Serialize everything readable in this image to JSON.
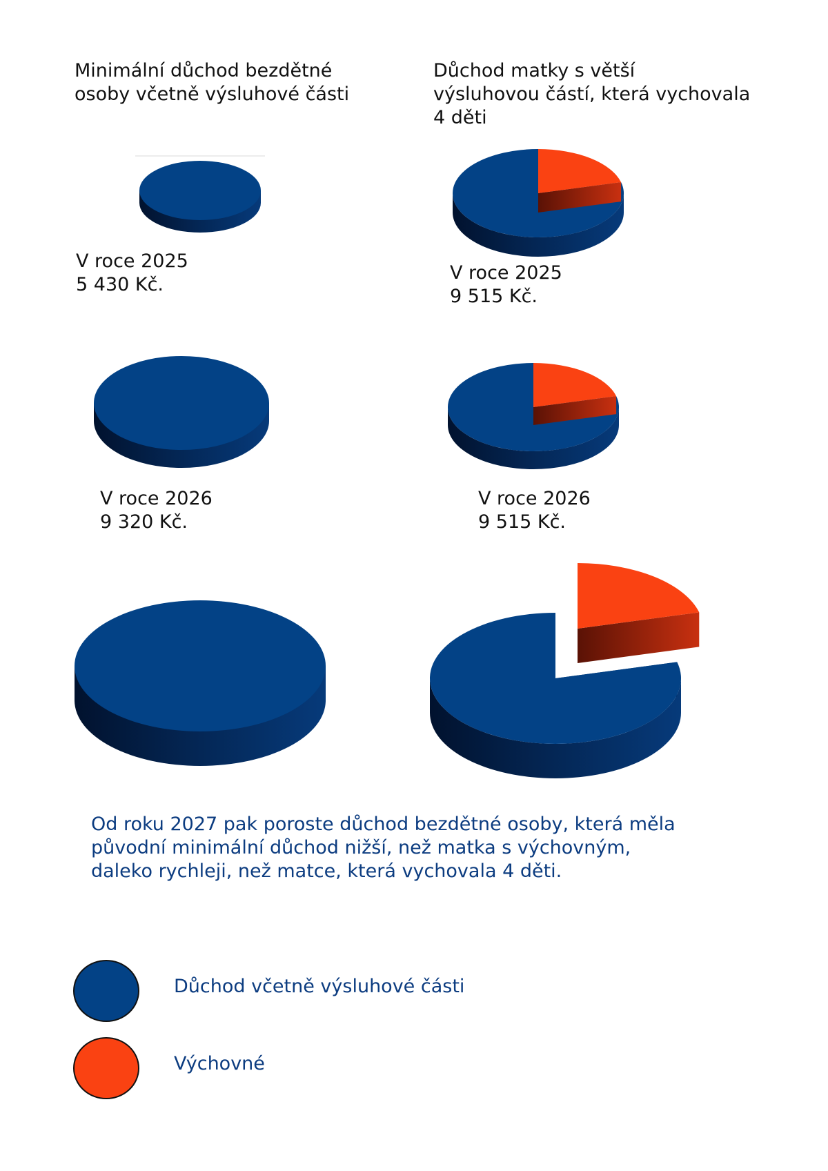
{
  "titles": {
    "left": "Minimální důchod bezdětné\nosoby včetně výsluhové části",
    "right": "Důchod matky s větší\nvýsluhovou částí, která vychovala\n4 děti"
  },
  "captions": {
    "left_2025": {
      "year": "V roce 2025",
      "amount": "5 430 Kč."
    },
    "right_2025": {
      "year": "V roce 2025",
      "amount": "9 515 Kč."
    },
    "left_2026": {
      "year": "V roce 2026",
      "amount": "9 320 Kč."
    },
    "right_2026": {
      "year": "V roce 2026",
      "amount": "9 515 Kč."
    }
  },
  "note": "Od roku 2027 pak poroste důchod bezdětné osoby, která měla\npůvodní minimální důchod nižší, než matka s výchovným,\ndaleko rychleji, než matce, která vychovala 4 děti.",
  "legend": [
    {
      "label": "Důchod včetně výsluhové části",
      "color": "#034286"
    },
    {
      "label": "Výchovné",
      "color": "#fa4212"
    }
  ],
  "chart_data": [
    {
      "type": "pie",
      "title": "",
      "labels": [
        "Důchod včetně výsluhové části"
      ],
      "values": [
        5430
      ]
    },
    {
      "type": "pie",
      "title": "",
      "labels": [
        "Důchod včetně výsluhové části",
        "Výchovné"
      ],
      "values": [
        0.79,
        0.21
      ]
    },
    {
      "type": "pie",
      "title": "",
      "labels": [
        "Důchod včetně výsluhové části"
      ],
      "values": [
        9320
      ]
    },
    {
      "type": "pie",
      "title": "",
      "labels": [
        "Důchod včetně výsluhové části",
        "Výchovné"
      ],
      "values": [
        0.79,
        0.21
      ]
    },
    {
      "type": "pie",
      "title": "",
      "labels": [
        "Důchod včetně výsluhové části"
      ],
      "values": [
        1
      ]
    },
    {
      "type": "pie",
      "title": "",
      "labels": [
        "Důchod včetně výsluhové části",
        "Výchovné"
      ],
      "values": [
        0.79,
        0.21
      ],
      "exploded": "Výchovné"
    }
  ]
}
